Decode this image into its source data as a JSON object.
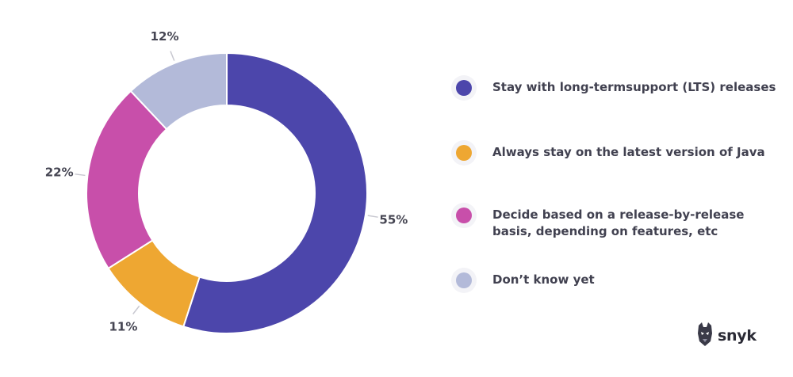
{
  "chart_data": {
    "type": "pie",
    "variant": "donut",
    "categories": [
      "Stay with long-termsupport (LTS) releases",
      "Always stay on the latest version of Java",
      "Decide based on a release-by-release basis, depending on features, etc",
      "Don’t know yet"
    ],
    "values": [
      55,
      11,
      22,
      12
    ],
    "value_labels": [
      "55%",
      "11%",
      "22%",
      "12%"
    ],
    "colors": [
      "#4c46ab",
      "#eea732",
      "#c84faa",
      "#b3bad9"
    ],
    "legend_placement": "right"
  },
  "legend": {
    "items": [
      {
        "label": "Stay with long-termsupport (LTS) releases",
        "color": "#4c46ab"
      },
      {
        "label": "Always stay on the latest version of Java",
        "color": "#eea732"
      },
      {
        "label": "Decide based on a release-by-release basis, depending on features, etc",
        "color": "#c84faa"
      },
      {
        "label": "Don’t know yet",
        "color": "#b3bad9"
      }
    ]
  },
  "logo": {
    "text": "snyk",
    "icon": "snyk-dog-icon"
  }
}
